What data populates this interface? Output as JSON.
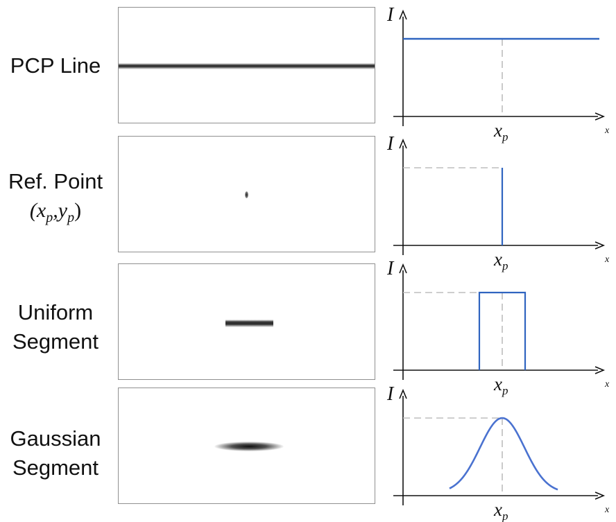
{
  "rows": [
    {
      "label_lines": [
        "PCP Line"
      ],
      "profile": "constant"
    },
    {
      "label_lines": [
        "Ref. Point"
      ],
      "sub_label": "(x",
      "sub_p": "p",
      "sub_mid": ",y",
      "sub_p2": "p",
      "sub_close": ")",
      "profile": "impulse"
    },
    {
      "label_lines": [
        "Uniform",
        "Segment"
      ],
      "profile": "box"
    },
    {
      "label_lines": [
        "Gaussian",
        "Segment"
      ],
      "profile": "gaussian"
    }
  ],
  "axes": {
    "y_label": "I",
    "x_label": "x",
    "x_tick_base": "x",
    "x_tick_sub": "p"
  },
  "colors": {
    "curve": "#2f64c0",
    "gaussian_curve": "#4a72d0",
    "guide": "#bdbdbd",
    "axis": "#111111"
  }
}
